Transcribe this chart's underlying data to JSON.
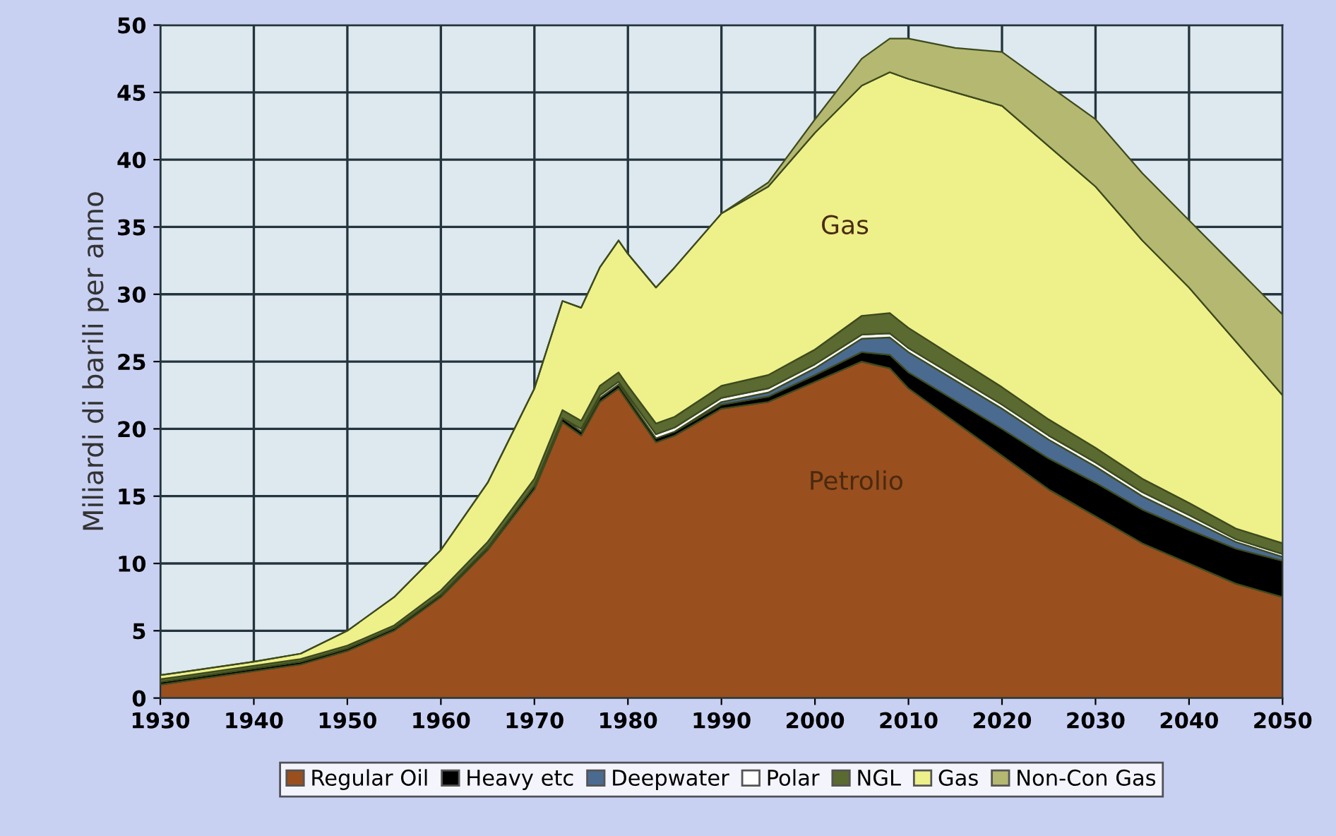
{
  "chart_data": {
    "type": "area",
    "stacked": true,
    "ylabel": "Miliardi di barili per anno",
    "x": [
      1930,
      1940,
      1945,
      1950,
      1955,
      1960,
      1965,
      1970,
      1973,
      1975,
      1977,
      1979,
      1980,
      1983,
      1985,
      1990,
      1995,
      2000,
      2005,
      2008,
      2010,
      2015,
      2020,
      2025,
      2030,
      2035,
      2040,
      2045,
      2050
    ],
    "series": [
      {
        "name": "Regular Oil",
        "color": "#9a4f1e",
        "values": [
          1.0,
          2.0,
          2.5,
          3.5,
          5,
          7.5,
          11,
          15.5,
          20.5,
          19.5,
          22,
          23,
          22,
          19,
          19.5,
          21.5,
          22,
          23.5,
          25,
          24.5,
          23,
          20.5,
          18,
          15.5,
          13.5,
          11.5,
          10,
          8.5,
          7.5
        ]
      },
      {
        "name": "Heavy etc",
        "color": "#000000",
        "values": [
          0.2,
          0.2,
          0.2,
          0.2,
          0.2,
          0.2,
          0.2,
          0.3,
          0.3,
          0.3,
          0.3,
          0.3,
          0.3,
          0.3,
          0.3,
          0.3,
          0.4,
          0.5,
          0.7,
          1.0,
          1.2,
          1.6,
          2.0,
          2.3,
          2.5,
          2.5,
          2.5,
          2.6,
          2.7
        ]
      },
      {
        "name": "Deepwater",
        "color": "#4a6a90",
        "values": [
          0,
          0,
          0,
          0,
          0,
          0,
          0,
          0,
          0,
          0,
          0,
          0,
          0,
          0,
          0,
          0.2,
          0.3,
          0.5,
          1.0,
          1.3,
          1.5,
          1.5,
          1.5,
          1.4,
          1.2,
          1.0,
          0.8,
          0.5,
          0.3
        ]
      },
      {
        "name": "Polar",
        "color": "#ffffff",
        "values": [
          0,
          0,
          0,
          0,
          0,
          0,
          0,
          0,
          0,
          0.2,
          0.2,
          0.2,
          0.2,
          0.3,
          0.3,
          0.3,
          0.3,
          0.3,
          0.3,
          0.3,
          0.3,
          0.3,
          0.3,
          0.3,
          0.3,
          0.3,
          0.3,
          0.2,
          0.2
        ]
      },
      {
        "name": "NGL",
        "color": "#5a6a30",
        "values": [
          0.2,
          0.2,
          0.2,
          0.2,
          0.2,
          0.3,
          0.4,
          0.5,
          0.6,
          0.6,
          0.7,
          0.7,
          0.7,
          0.8,
          0.8,
          0.9,
          1.0,
          1.1,
          1.4,
          1.5,
          1.5,
          1.4,
          1.3,
          1.2,
          1.1,
          1.0,
          0.9,
          0.8,
          0.8
        ]
      },
      {
        "name": "Gas",
        "color": "#eef08a",
        "values": [
          0.3,
          0.3,
          0.4,
          1.1,
          2.1,
          3.0,
          4.4,
          6.7,
          8.1,
          8.4,
          8.8,
          9.8,
          9.8,
          10.1,
          11.1,
          12.8,
          14.0,
          16.1,
          17.1,
          17.9,
          18.5,
          19.7,
          20.9,
          20.3,
          19.4,
          17.7,
          16.0,
          13.9,
          11.0
        ]
      },
      {
        "name": "Non-Con Gas",
        "color": "#b5b870",
        "values": [
          0,
          0,
          0,
          0,
          0,
          0,
          0,
          0,
          0,
          0,
          0,
          0,
          0,
          0,
          0,
          0,
          0.3,
          1.0,
          2.0,
          2.5,
          3.0,
          3.3,
          4.0,
          4.5,
          5.0,
          5.0,
          5.0,
          5.5,
          6.0
        ]
      }
    ],
    "xlim": [
      1930,
      2050
    ],
    "xticks": [
      1930,
      1940,
      1950,
      1960,
      1970,
      1980,
      1990,
      2000,
      2010,
      2020,
      2030,
      2040,
      2050
    ],
    "ylim": [
      0,
      50
    ],
    "yticks": [
      0,
      5,
      10,
      15,
      20,
      25,
      30,
      35,
      40,
      45,
      50
    ],
    "grid": true,
    "legend": "bottom",
    "annotations": [
      "Gas",
      "Petrolio"
    ]
  }
}
